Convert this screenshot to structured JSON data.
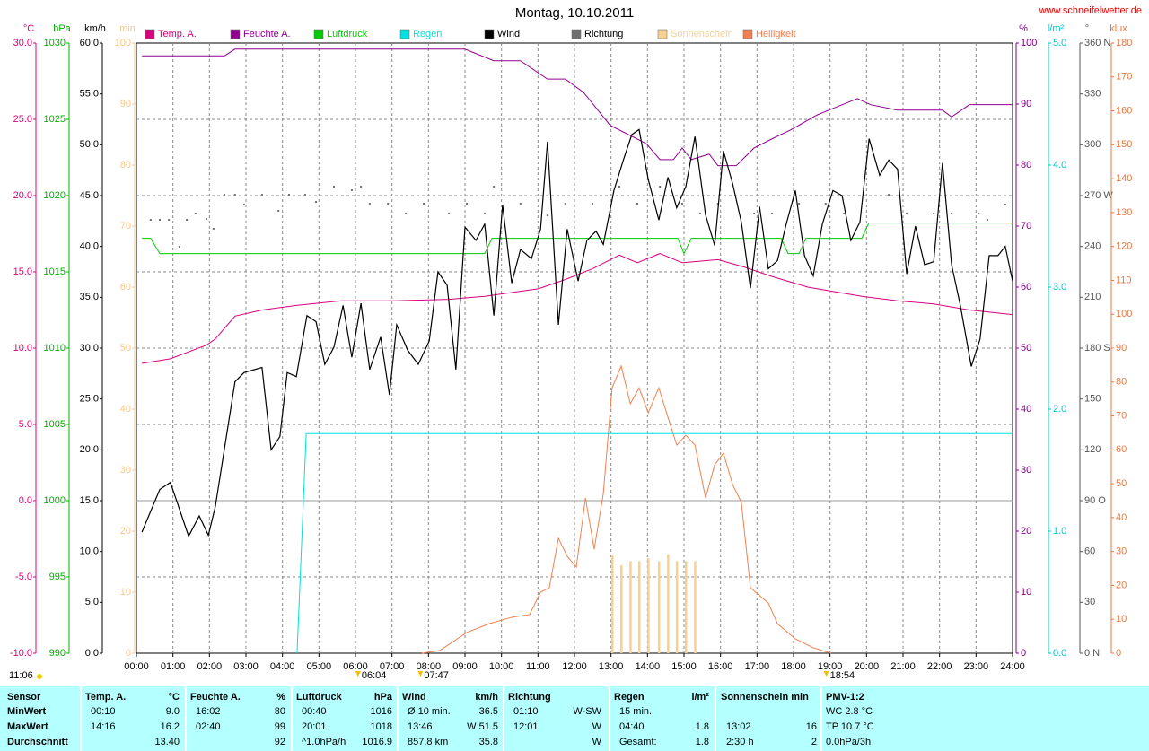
{
  "chart_data": {
    "type": "line",
    "title": "Montag, 10.10.2011",
    "source": "www.schneifelwetter.de",
    "clock": "11:06",
    "xlim": [
      0,
      24
    ],
    "xticks": [
      {
        "value": 0,
        "label": "00:00"
      },
      {
        "value": 1,
        "label": "01:00"
      },
      {
        "value": 2,
        "label": "02:00"
      },
      {
        "value": 3,
        "label": "03:00"
      },
      {
        "value": 4,
        "label": "04:00"
      },
      {
        "value": 5,
        "label": "05:00"
      },
      {
        "value": 6,
        "label": "06:00"
      },
      {
        "value": 7,
        "label": "07:00"
      },
      {
        "value": 8,
        "label": "08:00"
      },
      {
        "value": 9,
        "label": "09:00"
      },
      {
        "value": 10,
        "label": "10:00"
      },
      {
        "value": 11,
        "label": "11:00"
      },
      {
        "value": 12,
        "label": "12:00"
      },
      {
        "value": 13,
        "label": "13:00"
      },
      {
        "value": 14,
        "label": "14:00"
      },
      {
        "value": 15,
        "label": "15:00"
      },
      {
        "value": 16,
        "label": "16:00"
      },
      {
        "value": 17,
        "label": "17:00"
      },
      {
        "value": 18,
        "label": "18:00"
      },
      {
        "value": 19,
        "label": "19:00"
      },
      {
        "value": 20,
        "label": "20:00"
      },
      {
        "value": 21,
        "label": "21:00"
      },
      {
        "value": 22,
        "label": "22:00"
      },
      {
        "value": 23,
        "label": "23:00"
      },
      {
        "value": 24,
        "label": "24:00"
      }
    ],
    "grid": true,
    "axes": [
      {
        "unit": "°C",
        "color": "#e0007f",
        "side": "left",
        "lim": [
          -10,
          30
        ],
        "ticks": [
          {
            "value": 30,
            "label": "30.0"
          },
          {
            "value": 25,
            "label": "25.0"
          },
          {
            "value": 20,
            "label": "20.0"
          },
          {
            "value": 15,
            "label": "15.0"
          },
          {
            "value": 10,
            "label": "10.0"
          },
          {
            "value": 5,
            "label": "5.0"
          },
          {
            "value": 0,
            "label": "0.0"
          },
          {
            "value": -5,
            "label": "-5.0"
          },
          {
            "value": -10,
            "label": "-10.0"
          }
        ]
      },
      {
        "unit": "hPa",
        "color": "#00b000",
        "side": "left",
        "lim": [
          990,
          1030
        ],
        "ticks": [
          1030,
          1025,
          1020,
          1015,
          1010,
          1005,
          1000,
          995,
          990
        ]
      },
      {
        "unit": "km/h",
        "color": "#000000",
        "side": "left",
        "lim": [
          0,
          60
        ],
        "ticks": [
          {
            "value": 60,
            "label": "60.0"
          },
          {
            "value": 55,
            "label": "55.0"
          },
          {
            "value": 50,
            "label": "50.0"
          },
          {
            "value": 45,
            "label": "45.0"
          },
          {
            "value": 40,
            "label": "40.0"
          },
          {
            "value": 35,
            "label": "35.0"
          },
          {
            "value": 30,
            "label": "30.0"
          },
          {
            "value": 25,
            "label": "25.0"
          },
          {
            "value": 20,
            "label": "20.0"
          },
          {
            "value": 15,
            "label": "15.0"
          },
          {
            "value": 10,
            "label": "10.0"
          },
          {
            "value": 5,
            "label": "5.0"
          },
          {
            "value": 0,
            "label": "0.0"
          }
        ]
      },
      {
        "unit": "min",
        "color": "#f5c98a",
        "side": "left",
        "lim": [
          0,
          100
        ],
        "ticks": [
          100,
          90,
          80,
          70,
          60,
          50,
          40,
          30,
          20,
          10,
          0
        ]
      },
      {
        "unit": "%",
        "color": "#800080",
        "side": "right",
        "lim": [
          0,
          100
        ],
        "ticks": [
          100,
          90,
          80,
          70,
          60,
          50,
          40,
          30,
          20,
          10,
          0
        ]
      },
      {
        "unit": "l/m²",
        "color": "#00c8c8",
        "side": "right",
        "lim": [
          0,
          5
        ],
        "ticks": [
          {
            "value": 5,
            "label": "5.0"
          },
          {
            "value": 4,
            "label": "4.0"
          },
          {
            "value": 3,
            "label": "3.0"
          },
          {
            "value": 2,
            "label": "2.0"
          },
          {
            "value": 1,
            "label": "1.0"
          },
          {
            "value": 0,
            "label": "0.0"
          }
        ]
      },
      {
        "unit": "°",
        "color": "#555555",
        "side": "right",
        "lim": [
          0,
          360
        ],
        "ticks": [
          {
            "value": 360,
            "label": "360 N"
          },
          330,
          300,
          {
            "value": 270,
            "label": "270 W"
          },
          240,
          210,
          {
            "value": 180,
            "label": "180 S"
          },
          150,
          120,
          {
            "value": 90,
            "label": "90 O"
          },
          60,
          30,
          {
            "value": 0,
            "label": "0 N"
          }
        ]
      },
      {
        "unit": "klux",
        "color": "#e87840",
        "side": "right",
        "lim": [
          0,
          180
        ],
        "ticks": [
          180,
          170,
          160,
          150,
          140,
          130,
          120,
          110,
          100,
          90,
          80,
          70,
          60,
          50,
          40,
          30,
          20,
          10,
          0
        ]
      }
    ],
    "series": [
      {
        "name": "Temp. A.",
        "color": "#d8007f",
        "axis": 0,
        "style": "line",
        "x": [
          0.15,
          0.93,
          1.92,
          2.16,
          2.7,
          3.44,
          4.38,
          5.61,
          7.08,
          8.56,
          9.54,
          11.02,
          11.75,
          12.49,
          13.23,
          13.72,
          14.34,
          14.95,
          15.93,
          16.67,
          17.41,
          18.39,
          19.87,
          20.85,
          21.84,
          22.82,
          24
        ],
        "values": [
          9.0,
          9.3,
          10.2,
          10.6,
          12.1,
          12.5,
          12.8,
          13.1,
          13.1,
          13.2,
          13.4,
          13.9,
          14.5,
          15.2,
          16.1,
          15.6,
          16.2,
          15.6,
          15.8,
          15.3,
          14.7,
          14.0,
          13.4,
          13.1,
          12.9,
          12.5,
          12.2
        ]
      },
      {
        "name": "Feuchte A.",
        "color": "#900090",
        "axis": 4,
        "style": "line",
        "x": [
          0.15,
          2.41,
          2.7,
          9.0,
          9.79,
          10.52,
          11.26,
          11.75,
          12.25,
          12.98,
          13.48,
          13.97,
          14.34,
          14.71,
          14.95,
          15.2,
          15.69,
          15.93,
          16.43,
          16.92,
          17.41,
          17.9,
          18.64,
          19.25,
          19.75,
          20.11,
          20.85,
          22.08,
          22.33,
          22.82,
          24
        ],
        "values": [
          97.9,
          97.9,
          99.0,
          99.0,
          97.1,
          97.1,
          94.1,
          94.1,
          91.9,
          86.5,
          85.0,
          83.5,
          80.9,
          80.9,
          82.8,
          80.9,
          81.8,
          79.9,
          79.9,
          82.8,
          84.3,
          85.7,
          88.2,
          89.7,
          90.9,
          89.9,
          89.0,
          89.0,
          87.9,
          89.9,
          89.9
        ]
      },
      {
        "name": "Luftdruck",
        "color": "#00cc00",
        "axis": 1,
        "style": "line",
        "x": [
          0.15,
          0.39,
          0.64,
          9.54,
          9.74,
          14.83,
          15.0,
          15.2,
          17.66,
          17.85,
          18.15,
          18.34,
          19.87,
          20.06,
          24
        ],
        "values": [
          1017.2,
          1017.2,
          1016.2,
          1016.2,
          1017.2,
          1017.2,
          1016.2,
          1017.2,
          1017.2,
          1016.2,
          1016.2,
          1017.2,
          1017.2,
          1018.2,
          1018.2
        ]
      },
      {
        "name": "Regen",
        "color": "#00e0e0",
        "axis": 5,
        "style": "line",
        "x": [
          4.4,
          4.65,
          24
        ],
        "values": [
          0,
          1.8,
          1.8
        ]
      },
      {
        "name": "Wind",
        "color": "#000000",
        "axis": 2,
        "style": "line",
        "x": [
          0.15,
          0.64,
          0.93,
          1.43,
          1.72,
          1.97,
          2.16,
          2.7,
          2.95,
          3.44,
          3.69,
          3.93,
          4.13,
          4.38,
          4.67,
          4.92,
          5.16,
          5.41,
          5.66,
          5.9,
          6.15,
          6.39,
          6.69,
          6.93,
          7.13,
          7.43,
          7.72,
          8.02,
          8.26,
          8.51,
          8.75,
          9.0,
          9.3,
          9.54,
          9.79,
          10.03,
          10.28,
          10.52,
          10.82,
          11.07,
          11.26,
          11.56,
          11.8,
          12.1,
          12.34,
          12.59,
          12.79,
          13.08,
          13.33,
          13.57,
          13.77,
          14.02,
          14.31,
          14.56,
          14.8,
          15.05,
          15.3,
          15.59,
          15.84,
          16.08,
          16.33,
          16.57,
          16.82,
          17.07,
          17.31,
          17.56,
          17.8,
          18.05,
          18.3,
          18.54,
          18.79,
          19.08,
          19.33,
          19.57,
          19.82,
          20.07,
          20.36,
          20.61,
          20.85,
          21.1,
          21.34,
          21.59,
          21.84,
          22.08,
          22.33,
          22.57,
          22.87,
          23.11,
          23.36,
          23.6,
          23.8,
          24.0
        ],
        "values": [
          11.9,
          16.1,
          16.8,
          11.5,
          13.5,
          11.6,
          14.4,
          26.7,
          27.6,
          28.1,
          20.0,
          21.3,
          27.6,
          27.2,
          33.2,
          32.6,
          28.4,
          30.1,
          34.2,
          29.1,
          34.4,
          27.9,
          31.1,
          25.4,
          32.3,
          29.8,
          28.4,
          30.7,
          37.5,
          36.2,
          27.9,
          41.9,
          40.6,
          42.2,
          33.2,
          44.1,
          36.4,
          39.7,
          38.8,
          41.7,
          50.3,
          32.3,
          41.7,
          36.6,
          40.6,
          41.5,
          40.2,
          45.5,
          48.4,
          51.0,
          51.5,
          46.6,
          42.6,
          46.8,
          43.8,
          45.9,
          50.8,
          43.1,
          40.1,
          49.4,
          46.2,
          42.4,
          35.9,
          43.9,
          37.8,
          38.6,
          42.2,
          45.5,
          39.1,
          37.1,
          42.2,
          45.5,
          45.0,
          40.6,
          42.4,
          50.6,
          47.0,
          48.5,
          47.6,
          37.3,
          42.0,
          38.2,
          38.5,
          48.2,
          38.2,
          34.2,
          28.2,
          30.9,
          39.1,
          39.1,
          40.0,
          36.6
        ]
      },
      {
        "name": "Richtung",
        "color": "#707070",
        "axis": 6,
        "style": "dots",
        "x": [
          0.39,
          0.64,
          0.89,
          1.18,
          1.38,
          1.62,
          1.92,
          2.11,
          2.41,
          2.7,
          2.95,
          3.44,
          3.89,
          4.18,
          4.62,
          4.92,
          5.41,
          5.9,
          6.15,
          6.39,
          6.89,
          7.38,
          7.87,
          8.56,
          9.05,
          9.54,
          9.79,
          10.52,
          11.26,
          11.75,
          12.49,
          13.23,
          13.72,
          14.34,
          14.95,
          15.44,
          15.93,
          16.92,
          17.41,
          18.15,
          18.88,
          19.38,
          20.61,
          21.1,
          21.84,
          22.33,
          23.07,
          23.31,
          23.8
        ],
        "values": [
          255.7,
          255.7,
          255.7,
          239.8,
          255.7,
          259.4,
          256.2,
          250.4,
          270.5,
          270.5,
          264.7,
          270.5,
          261.0,
          270.5,
          270.5,
          266.3,
          275.3,
          273.2,
          275.3,
          265.2,
          265.2,
          259.4,
          265.2,
          259.4,
          265.2,
          259.4,
          275.3,
          265.2,
          258.3,
          265.2,
          265.2,
          275.3,
          265.2,
          275.3,
          265.2,
          259.4,
          265.2,
          259.4,
          259.4,
          265.2,
          265.2,
          259.4,
          270.5,
          259.4,
          259.4,
          259.4,
          259.4,
          255.7,
          264.7
        ]
      },
      {
        "name": "Sonnenschein",
        "color": "#f8d090",
        "axis": 3,
        "style": "bars",
        "x": [
          13.03,
          13.28,
          13.53,
          13.77,
          14.02,
          14.31,
          14.56,
          14.8,
          15.05,
          15.3
        ],
        "values": [
          16.2,
          14.4,
          15.1,
          15.1,
          15.6,
          15.1,
          16.2,
          15.1,
          15.1,
          15.1
        ]
      },
      {
        "name": "Helligkeit",
        "color": "#f08050",
        "axis": 7,
        "style": "line",
        "x": [
          7.82,
          8.31,
          9.05,
          9.66,
          10.28,
          10.77,
          11.07,
          11.31,
          11.56,
          11.8,
          12.05,
          12.3,
          12.54,
          12.79,
          13.03,
          13.28,
          13.53,
          13.77,
          14.02,
          14.31,
          14.56,
          14.8,
          15.05,
          15.3,
          15.59,
          15.84,
          16.08,
          16.33,
          16.57,
          16.82,
          17.31,
          17.56,
          18.05,
          18.54,
          19.03
        ],
        "values": [
          0,
          0.8,
          6.1,
          8.7,
          10.6,
          11.4,
          18.0,
          19.3,
          33.9,
          28.6,
          25.4,
          45.8,
          30.7,
          47.1,
          78.3,
          84.7,
          73.6,
          78.3,
          70.9,
          78.3,
          69.6,
          61.4,
          64.3,
          61.4,
          45.8,
          55.6,
          59.0,
          49.8,
          44.5,
          19.3,
          14.8,
          8.7,
          4.2,
          1.6,
          0
        ]
      }
    ],
    "annotations": [
      {
        "label": "06:04",
        "x": 6.07
      },
      {
        "label": "07:47",
        "x": 7.78
      },
      {
        "label": "18:54",
        "x": 18.9
      }
    ]
  },
  "table": {
    "rows": [
      [
        [
          "Sensor"
        ],
        [
          "Temp. A.",
          "°C"
        ],
        [
          "Feuchte A.",
          "%"
        ],
        [
          "Luftdruck",
          "hPa"
        ],
        [
          "Wind",
          "km/h"
        ],
        [
          "Richtung"
        ],
        [
          "Regen",
          "l/m²"
        ],
        [
          "Sonnenschein min"
        ],
        [
          "PMV-1:2"
        ]
      ],
      [
        [
          "MinWert"
        ],
        [
          "00:10",
          "9.0"
        ],
        [
          "16:02",
          "80"
        ],
        [
          "00:40",
          "1016"
        ],
        [
          "Ø 10 min.",
          "36.5"
        ],
        [
          "01:10",
          "W-SW"
        ],
        [
          "15 min."
        ],
        [],
        [
          "WC 2.8 °C"
        ]
      ],
      [
        [
          "MaxWert"
        ],
        [
          "14:16",
          "16.2"
        ],
        [
          "02:40",
          "99"
        ],
        [
          "20:01",
          "1018"
        ],
        [
          "13:46",
          "W 51.5"
        ],
        [
          "12:01",
          "W"
        ],
        [
          "04:40",
          "1.8"
        ],
        [
          "13:02",
          "16"
        ],
        [
          "TP 10.7 °C"
        ]
      ],
      [
        [
          "Durchschnitt"
        ],
        [
          "13.40"
        ],
        [
          "92"
        ],
        [
          "^1.0hPa/h",
          "1016.9"
        ],
        [
          "857.8 km",
          "35.8"
        ],
        [
          "W"
        ],
        [
          "Gesamt:",
          "1.8"
        ],
        [
          "2:30 h",
          "2"
        ],
        [
          "0.0hPa/3h"
        ]
      ]
    ]
  }
}
